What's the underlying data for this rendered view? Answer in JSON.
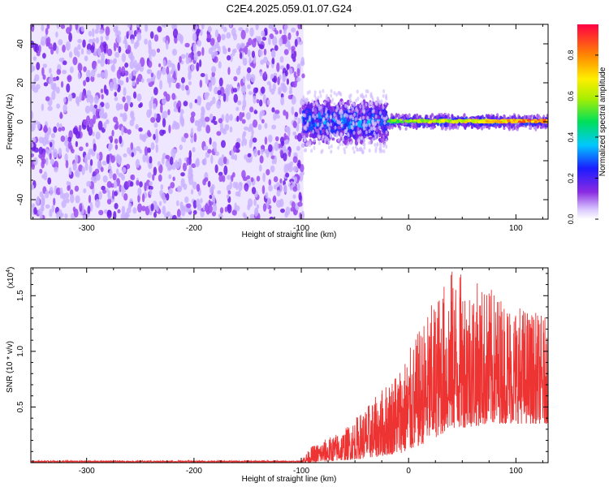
{
  "title": "C2E4.2025.059.01.07.G24",
  "chart_data": [
    {
      "type": "heatmap",
      "title": "C2E4.2025.059.01.07.G24",
      "xlabel": "Height of straight line (km)",
      "ylabel": "Frequency (Hz)",
      "xlim": [
        -352,
        130
      ],
      "ylim": [
        -50,
        50
      ],
      "xticks": [
        -300,
        -200,
        -100,
        0,
        100
      ],
      "yticks": [
        -40,
        -20,
        0,
        20,
        40
      ],
      "colorbar": {
        "label": "Normalized spectral amplitude",
        "range": [
          0,
          0.95
        ],
        "ticks": [
          "0.0",
          "0.2",
          "0.4",
          "0.6",
          "0.8"
        ],
        "tick_values": [
          0,
          0.2,
          0.4,
          0.6,
          0.8
        ]
      },
      "regions": [
        {
          "x": [
            -352,
            -98
          ],
          "freq": [
            -50,
            50
          ],
          "amplitude": [
            0.02,
            0.12
          ],
          "description": "broadband noise"
        },
        {
          "x": [
            -98,
            -20
          ],
          "freq": [
            -12,
            12
          ],
          "amplitude": [
            0.1,
            0.4
          ],
          "description": "signal onset"
        },
        {
          "x": [
            -20,
            130
          ],
          "freq": [
            -4,
            4
          ],
          "amplitude": [
            0.3,
            0.95
          ],
          "carrier_hz": 0.3,
          "description": "narrowband carrier"
        }
      ]
    },
    {
      "type": "line",
      "xlabel": "Height of straight line (km)",
      "ylabel": "SNR (10 * v/v)",
      "scale_label": "(x10",
      "scale_exponent": "4",
      "xlim": [
        -352,
        130
      ],
      "ylim": [
        0,
        1.75
      ],
      "xticks": [
        -300,
        -200,
        -100,
        0,
        100
      ],
      "yticks": [
        0.5,
        1.0,
        1.5
      ],
      "ytick_labels": [
        "0.5",
        "1.0",
        "1.5"
      ],
      "series": [
        {
          "name": "SNR",
          "color": "#ee3333",
          "envelope": [
            {
              "x": -352,
              "y_low": 0.0,
              "y_high": 0.03
            },
            {
              "x": -100,
              "y_low": 0.0,
              "y_high": 0.03
            },
            {
              "x": -90,
              "y_low": 0.0,
              "y_high": 0.15
            },
            {
              "x": -60,
              "y_low": 0.02,
              "y_high": 0.3
            },
            {
              "x": -30,
              "y_low": 0.05,
              "y_high": 0.6
            },
            {
              "x": 0,
              "y_low": 0.1,
              "y_high": 1.0
            },
            {
              "x": 20,
              "y_low": 0.2,
              "y_high": 1.4
            },
            {
              "x": 40,
              "y_low": 0.3,
              "y_high": 1.75
            },
            {
              "x": 80,
              "y_low": 0.35,
              "y_high": 1.55
            },
            {
              "x": 130,
              "y_low": 0.35,
              "y_high": 1.3
            }
          ]
        }
      ]
    }
  ]
}
